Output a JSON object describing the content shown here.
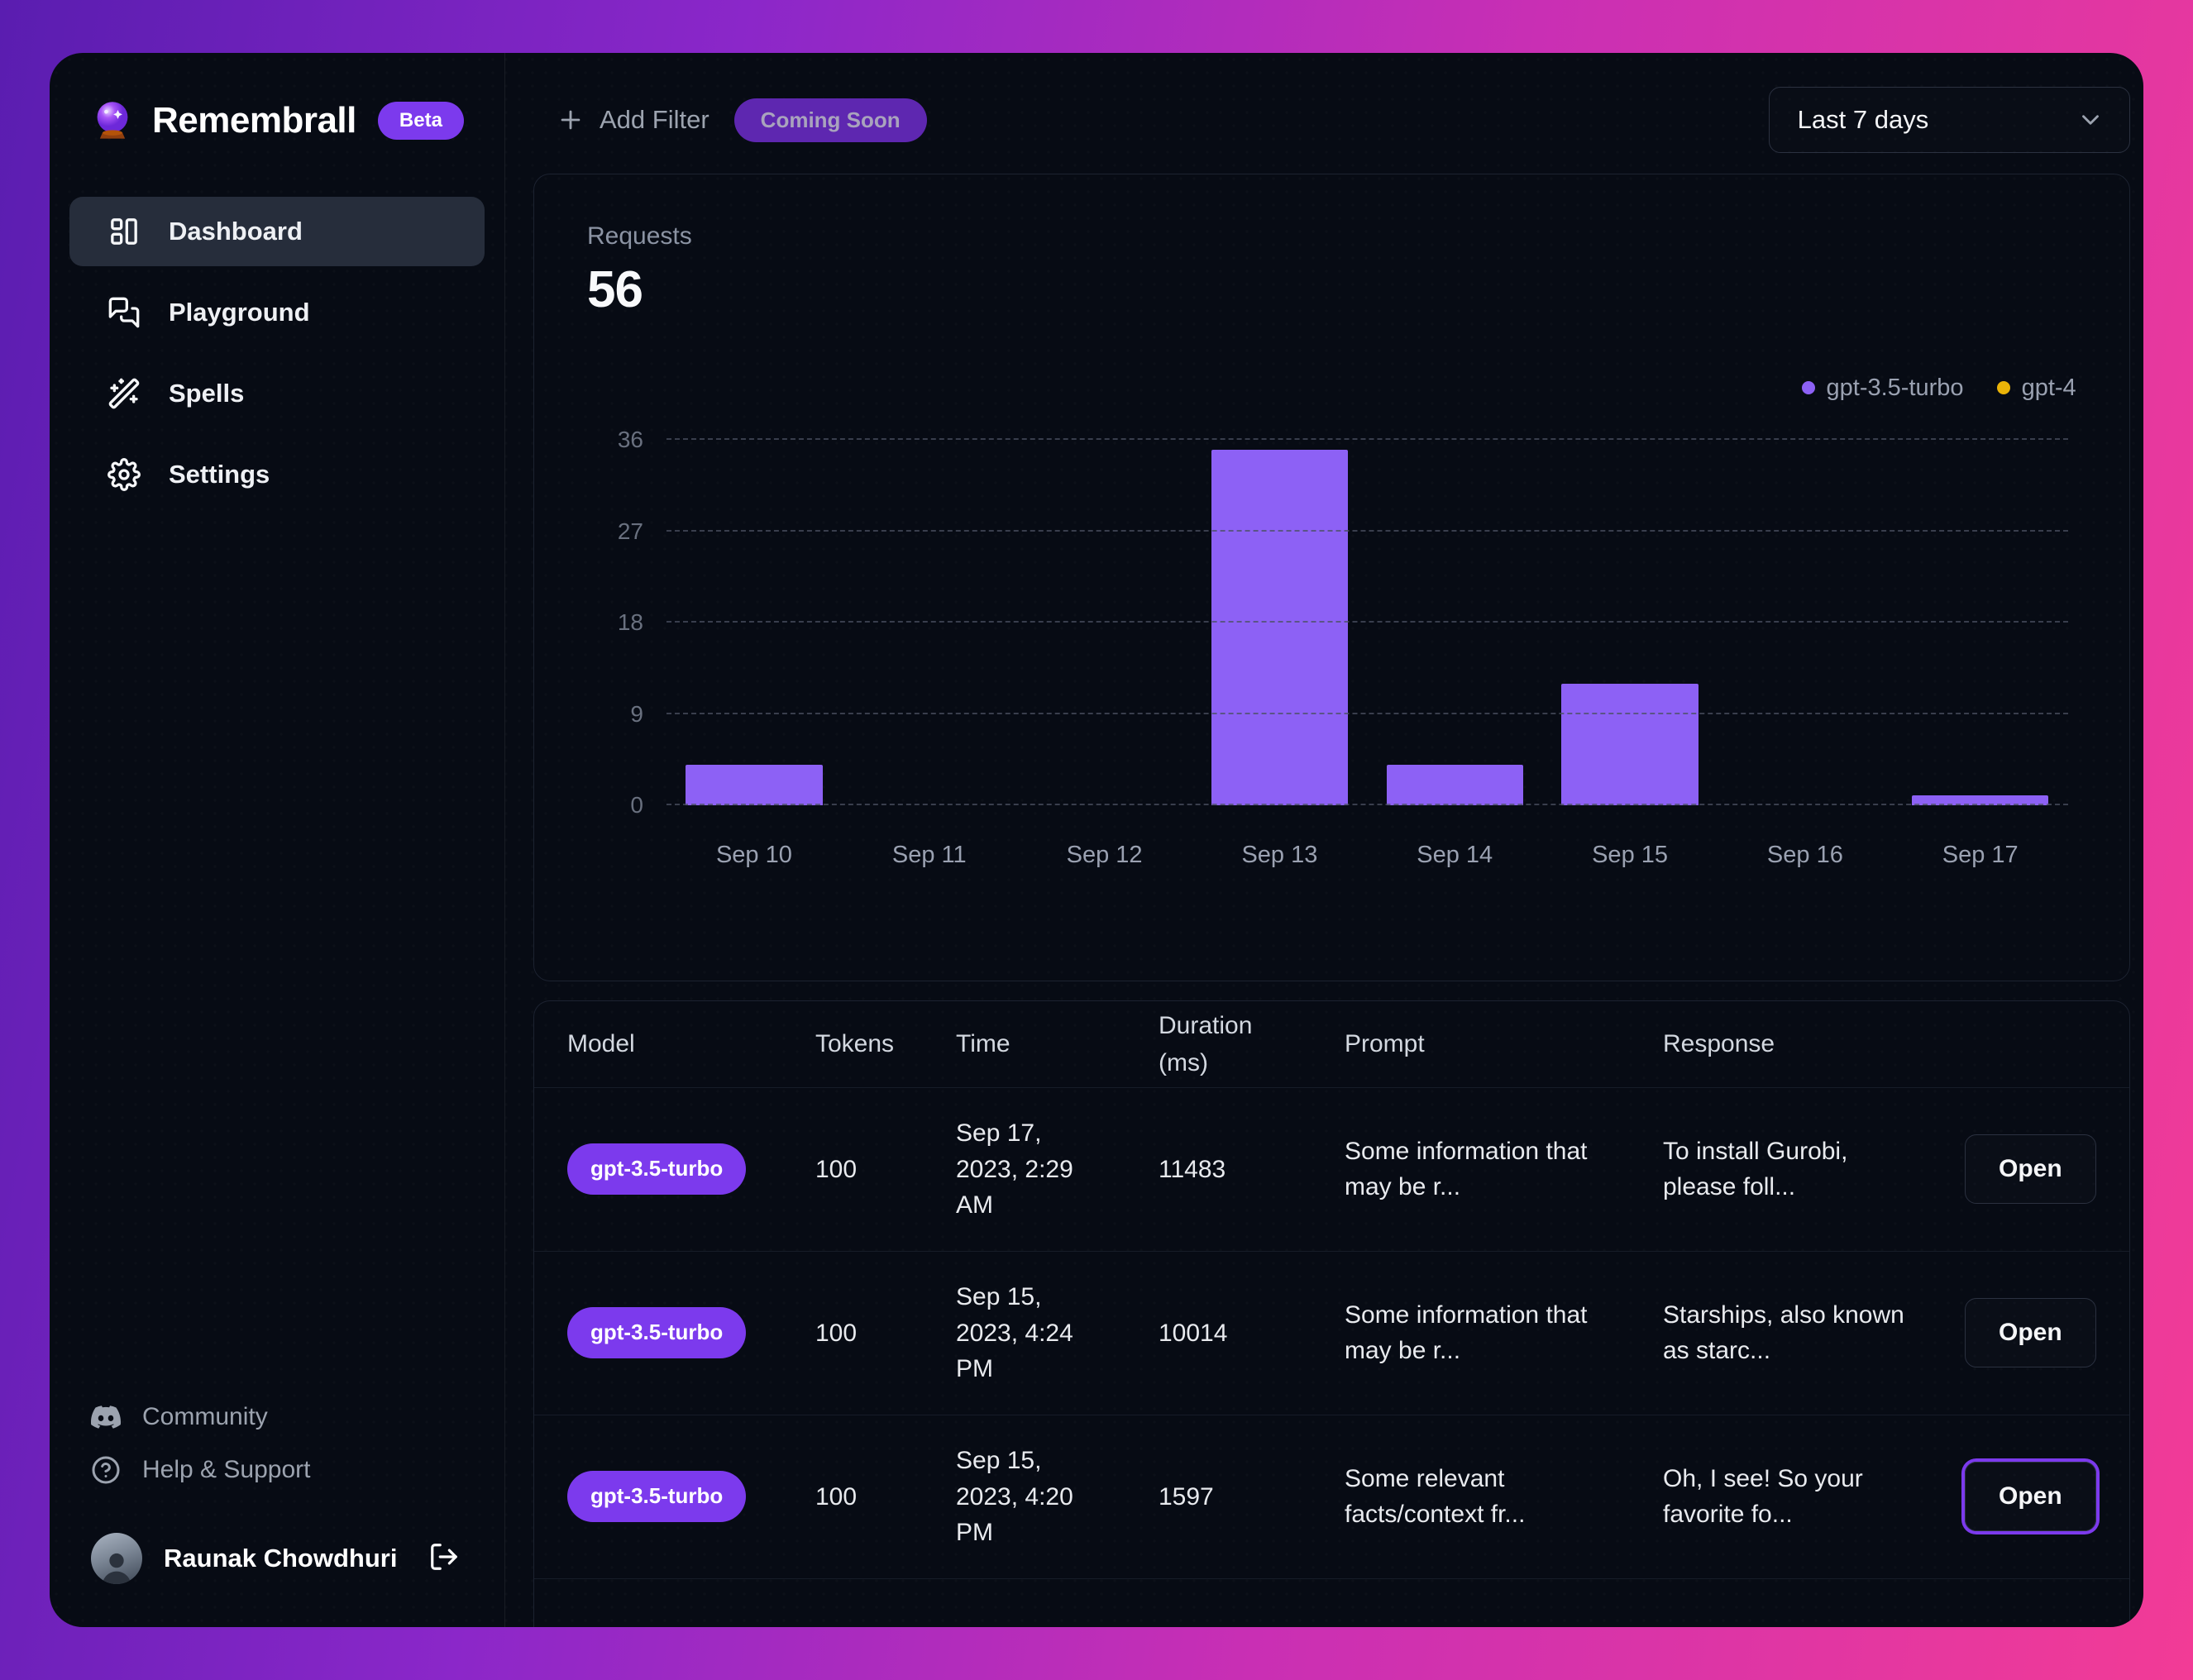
{
  "app": {
    "name": "Remembrall",
    "badge": "Beta"
  },
  "sidebar": {
    "items": [
      {
        "label": "Dashboard",
        "active": true
      },
      {
        "label": "Playground",
        "active": false
      },
      {
        "label": "Spells",
        "active": false
      },
      {
        "label": "Settings",
        "active": false
      }
    ],
    "footer": [
      {
        "label": "Community"
      },
      {
        "label": "Help & Support"
      }
    ],
    "user": {
      "name": "Raunak Chowdhuri"
    }
  },
  "topbar": {
    "add_filter_label": "Add Filter",
    "coming_soon_label": "Coming Soon",
    "range_value": "Last 7 days"
  },
  "chart": {
    "metric_label": "Requests",
    "metric_value": "56"
  },
  "chart_data": {
    "type": "bar",
    "title": "Requests",
    "categories": [
      "Sep 10",
      "Sep 11",
      "Sep 12",
      "Sep 13",
      "Sep 14",
      "Sep 15",
      "Sep 16",
      "Sep 17"
    ],
    "series": [
      {
        "name": "gpt-3.5-turbo",
        "color": "#8d61f5",
        "values": [
          4,
          0,
          0,
          35,
          4,
          12,
          0,
          1
        ]
      },
      {
        "name": "gpt-4",
        "color": "#eab308",
        "values": [
          0,
          0,
          0,
          0,
          0,
          0,
          0,
          0
        ]
      }
    ],
    "ylim": [
      0,
      36
    ],
    "yticks": [
      0,
      9,
      18,
      27,
      36
    ],
    "grid": "horizontal-dashed",
    "legend_position": "top-right"
  },
  "table": {
    "headers": [
      "Model",
      "Tokens",
      "Time",
      "Duration (ms)",
      "Prompt",
      "Response"
    ],
    "open_label": "Open",
    "rows": [
      {
        "model": "gpt-3.5-turbo",
        "tokens": "100",
        "time": "Sep 17, 2023, 2:29 AM",
        "duration": "11483",
        "prompt": "Some information that may be r...",
        "response": "To install Gurobi, please foll...",
        "open_highlighted": false
      },
      {
        "model": "gpt-3.5-turbo",
        "tokens": "100",
        "time": "Sep 15, 2023, 4:24 PM",
        "duration": "10014",
        "prompt": "Some information that may be r...",
        "response": "Starships, also known as starc...",
        "open_highlighted": false
      },
      {
        "model": "gpt-3.5-turbo",
        "tokens": "100",
        "time": "Sep 15, 2023, 4:20 PM",
        "duration": "1597",
        "prompt": "Some relevant facts/context fr...",
        "response": "Oh, I see! So your favorite fo...",
        "open_highlighted": true
      }
    ]
  },
  "colors": {
    "accent_purple": "#7c3aed",
    "bar_purple": "#8d61f5",
    "gpt4_yellow": "#eab308",
    "panel_bg": "#070b14",
    "frame_gradient_start": "#5a1db0",
    "frame_gradient_end": "#f23b96"
  }
}
